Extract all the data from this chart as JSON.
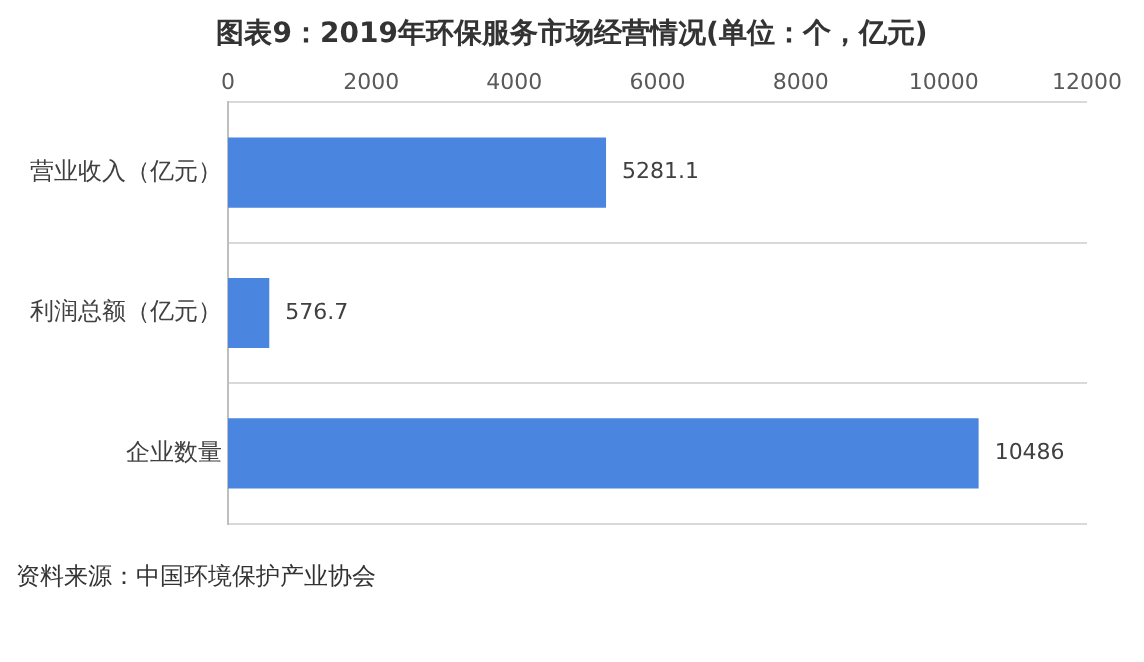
{
  "chart_data": {
    "type": "bar",
    "orientation": "horizontal",
    "title": "图表9：2019年环保服务市场经营情况(单位：个，亿元)",
    "categories": [
      "营业收入（亿元）",
      "利润总额（亿元）",
      "企业数量"
    ],
    "values": [
      5281.1,
      576.7,
      10486
    ],
    "color": "#4a86e0",
    "xlim": [
      0,
      12000
    ],
    "xticks": [
      0,
      2000,
      4000,
      6000,
      8000,
      10000,
      12000
    ],
    "grid": "y",
    "data_labels": true,
    "annotations": [
      "资料来源：中国环境保护产业协会"
    ]
  }
}
